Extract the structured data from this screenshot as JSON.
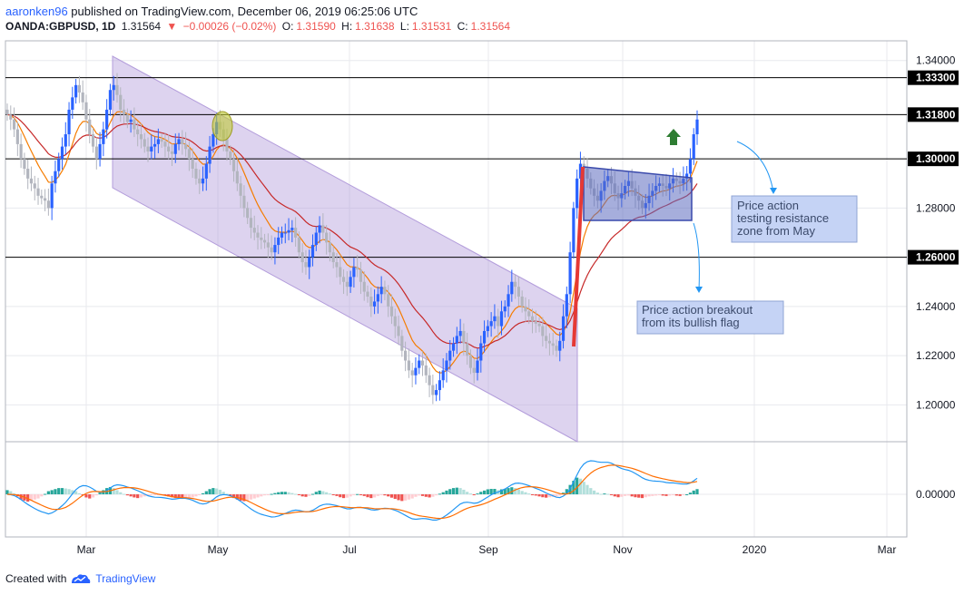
{
  "header": {
    "author": "aaronken96",
    "published_text": "published on TradingView.com, December 06, 2019 06:25:06 UTC",
    "symbol": "OANDA:GBPUSD, 1D",
    "last": "1.31564",
    "arrow": "▼",
    "change": "−0.00026 (−0.02%)",
    "open_label": "O:",
    "open": "1.31590",
    "high_label": "H:",
    "high": "1.31638",
    "low_label": "L:",
    "low": "1.31531",
    "close_label": "C:",
    "close": "1.31564"
  },
  "footer": {
    "created_with": "Created with",
    "brand": "TradingView"
  },
  "colors": {
    "up": "#2962ff",
    "down": "#b2b5be",
    "ema_fast": "#f57c00",
    "ema_slow": "#c62828",
    "channel": "#b39ddb",
    "flag": "#5c6bc0",
    "flagpole": "#e53935",
    "arrow_up": "#2e7d32",
    "macd_line": "#2196f3",
    "signal_line": "#ff6d00",
    "hist_pos": "#26a69a",
    "hist_neg": "#ef5350"
  },
  "chart_data": {
    "type": "candlestick",
    "x_ticks": [
      "Mar",
      "May",
      "Jul",
      "Sep",
      "Nov",
      "2020",
      "Mar"
    ],
    "y_ticks": [
      "1.34000",
      "1.28000",
      "1.24000",
      "1.22000",
      "1.20000"
    ],
    "ylim": [
      1.185,
      1.348
    ],
    "horizontal_levels": [
      {
        "value": 1.333,
        "label": "1.33300"
      },
      {
        "value": 1.318,
        "label": "1.31800"
      },
      {
        "value": 1.3,
        "label": "1.30000"
      },
      {
        "value": 1.26,
        "label": "1.26000"
      }
    ],
    "annotations": [
      {
        "text_lines": [
          "Price action",
          "testing resistance",
          "zone from May"
        ]
      },
      {
        "text_lines": [
          "Price action breakout",
          "from its bullish flag"
        ]
      }
    ],
    "candles_close": [
      1.318,
      1.316,
      1.312,
      1.306,
      1.3,
      1.296,
      1.292,
      1.29,
      1.288,
      1.285,
      1.284,
      1.283,
      1.28,
      1.29,
      1.295,
      1.3,
      1.305,
      1.31,
      1.32,
      1.325,
      1.33,
      1.327,
      1.323,
      1.316,
      1.31,
      1.305,
      1.3,
      1.306,
      1.312,
      1.32,
      1.328,
      1.33,
      1.326,
      1.32,
      1.318,
      1.315,
      1.316,
      1.312,
      1.31,
      1.308,
      1.305,
      1.303,
      1.305,
      1.306,
      1.308,
      1.307,
      1.305,
      1.303,
      1.302,
      1.306,
      1.308,
      1.306,
      1.304,
      1.3,
      1.296,
      1.292,
      1.29,
      1.292,
      1.298,
      1.305,
      1.31,
      1.315,
      1.312,
      1.308,
      1.303,
      1.3,
      1.295,
      1.29,
      1.285,
      1.28,
      1.276,
      1.272,
      1.27,
      1.268,
      1.267,
      1.266,
      1.264,
      1.262,
      1.265,
      1.268,
      1.27,
      1.27,
      1.271,
      1.272,
      1.268,
      1.262,
      1.258,
      1.256,
      1.26,
      1.265,
      1.27,
      1.273,
      1.27,
      1.266,
      1.262,
      1.258,
      1.256,
      1.252,
      1.25,
      1.248,
      1.252,
      1.256,
      1.255,
      1.25,
      1.246,
      1.244,
      1.24,
      1.242,
      1.245,
      1.248,
      1.245,
      1.24,
      1.236,
      1.232,
      1.228,
      1.222,
      1.218,
      1.214,
      1.212,
      1.215,
      1.218,
      1.216,
      1.212,
      1.208,
      1.204,
      1.206,
      1.21,
      1.214,
      1.218,
      1.222,
      1.225,
      1.228,
      1.23,
      1.225,
      1.22,
      1.215,
      1.213,
      1.218,
      1.225,
      1.23,
      1.232,
      1.234,
      1.236,
      1.232,
      1.238,
      1.24,
      1.245,
      1.25,
      1.248,
      1.244,
      1.24,
      1.238,
      1.236,
      1.234,
      1.233,
      1.232,
      1.228,
      1.226,
      1.225,
      1.224,
      1.222,
      1.226,
      1.236,
      1.245,
      1.262,
      1.28,
      1.292,
      1.298,
      1.296,
      1.292,
      1.288,
      1.285,
      1.283,
      1.287,
      1.291,
      1.293,
      1.29,
      1.286,
      1.284,
      1.286,
      1.289,
      1.291,
      1.288,
      1.285,
      1.283,
      1.28,
      1.282,
      1.285,
      1.287,
      1.289,
      1.29,
      1.289,
      1.288,
      1.29,
      1.292,
      1.291,
      1.29,
      1.292,
      1.294,
      1.3,
      1.31,
      1.316
    ],
    "macd_hist": [
      0.002,
      0.0015,
      0.0005,
      -0.001,
      -0.0025,
      -0.003,
      -0.0035,
      -0.003,
      -0.0025,
      -0.002,
      -0.001,
      0.0002,
      0.0015,
      0.002,
      0.0025,
      0.003,
      0.003,
      0.0028,
      0.0025,
      0.002,
      0.0015,
      0.0005,
      -0.0005,
      -0.0015,
      -0.002,
      -0.0015,
      -0.0005,
      0.0008,
      0.002,
      0.003,
      0.0035,
      0.003,
      0.002,
      0.001,
      0.0002,
      -0.0005,
      -0.001,
      -0.0015,
      -0.0018,
      -0.0015,
      -0.001,
      -0.0008,
      -0.0005,
      -0.0003,
      -0.0002,
      -0.0004,
      -0.0006,
      -0.001,
      -0.0014,
      -0.0018,
      -0.002,
      -0.0022,
      -0.002,
      -0.0018,
      -0.0015,
      -0.001,
      -0.0004,
      0.0005,
      0.0015,
      0.0025,
      0.003,
      0.0028,
      0.0022,
      0.0012,
      0.0003,
      -0.0008,
      -0.0018,
      -0.0025,
      -0.003,
      -0.0033,
      -0.003,
      -0.0025,
      -0.002,
      -0.0015,
      -0.001,
      -0.0005,
      -0.0002,
      0.0002,
      0.0006,
      0.001,
      0.0012,
      0.0012,
      0.001,
      0.0006,
      0.0002,
      -0.0004,
      -0.001,
      -0.0012,
      -0.0008,
      0.0002,
      0.0012,
      0.0018,
      0.0015,
      0.001,
      0.0004,
      -0.0002,
      -0.0008,
      -0.0014,
      -0.0018,
      -0.0016,
      -0.001,
      -0.0004,
      0.0001,
      -0.0002,
      -0.0008,
      -0.0014,
      -0.0018,
      -0.0015,
      -0.0008,
      -0.0002,
      -0.0005,
      -0.001,
      -0.0016,
      -0.0022,
      -0.0028,
      -0.0032,
      -0.003,
      -0.0025,
      -0.002,
      -0.0012,
      -0.0006,
      -0.0008,
      -0.0012,
      -0.0015,
      -0.0012,
      -0.0005,
      0.0003,
      0.001,
      0.0018,
      0.0025,
      0.003,
      0.0032,
      0.003,
      0.0022,
      0.0012,
      0.0004,
      -0.0002,
      0.0004,
      0.0012,
      0.0018,
      0.0024,
      0.0026,
      0.0026,
      0.002,
      0.0024,
      0.0026,
      0.003,
      0.0034,
      0.003,
      0.0024,
      0.0016,
      0.001,
      0.0004,
      -0.0002,
      -0.0006,
      -0.001,
      -0.0014,
      -0.0016,
      -0.0014,
      -0.0012,
      -0.001,
      -0.0006,
      0.0008,
      0.0025,
      0.0045,
      0.0065,
      0.008,
      0.0075,
      0.006,
      0.0045,
      0.003,
      0.0018,
      0.0008,
      0.0002,
      0.0004,
      0.0002,
      -0.0004,
      -0.001,
      -0.0014,
      -0.0012,
      -0.0008,
      -0.0006,
      -0.001,
      -0.0014,
      -0.0016,
      -0.0018,
      -0.0014,
      -0.001,
      -0.0008,
      -0.0006,
      -0.0004,
      -0.0006,
      -0.0008,
      -0.0006,
      -0.0004,
      -0.0006,
      -0.0008,
      -0.0004,
      0.0,
      0.0008,
      0.0018,
      0.0025
    ],
    "macd_ytick": "0.00000"
  }
}
